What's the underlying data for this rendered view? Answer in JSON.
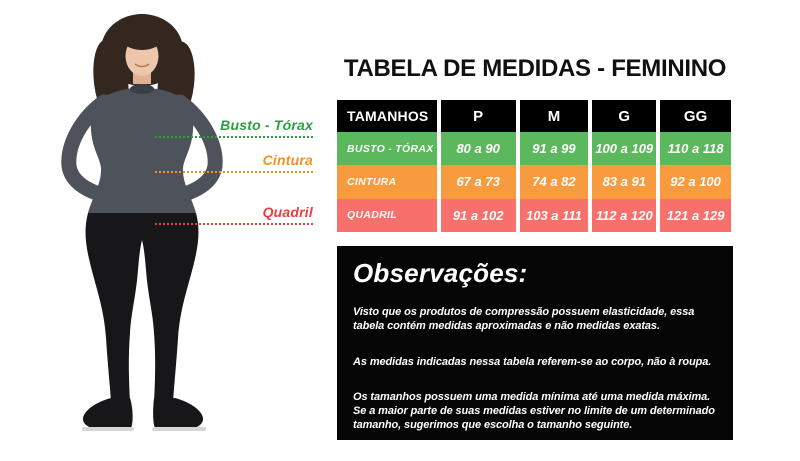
{
  "page": {
    "background": "#ffffff"
  },
  "title": "TABELA DE MEDIDAS - FEMININO",
  "figure": {
    "labels": [
      {
        "id": "busto",
        "text": "Busto - Tórax",
        "color": "#2f9e41"
      },
      {
        "id": "cintura",
        "text": "Cintura",
        "color": "#f29221"
      },
      {
        "id": "quadril",
        "text": "Quadril",
        "color": "#e8403e"
      }
    ]
  },
  "size_table": {
    "header": [
      "TAMANHOS",
      "P",
      "M",
      "G",
      "GG"
    ],
    "header_bg": "#000000",
    "rows": [
      {
        "label": "BUSTO - TÓRAX",
        "color": "#5cb85c",
        "values": [
          "80 a 90",
          "91 a 99",
          "100 a 109",
          "110 a 118"
        ]
      },
      {
        "label": "CINTURA",
        "color": "#f89a3e",
        "values": [
          "67 a 73",
          "74 a 82",
          "83 a 91",
          "92 a 100"
        ]
      },
      {
        "label": "QUADRIL",
        "color": "#f8706c",
        "values": [
          "91 a 102",
          "103 a 111",
          "112 a 120",
          "121 a 129"
        ]
      }
    ]
  },
  "observations": {
    "title": "Observações:",
    "paragraphs": [
      "Visto que os produtos de compressão possuem elasticidade, essa tabela contém medidas aproximadas e não medidas exatas.",
      "As medidas indicadas nessa tabela referem-se ao corpo, não à roupa.",
      "Os tamanhos possuem uma medida mínima até uma medida máxima. Se a maior parte de suas medidas estiver no limite de um determinado tamanho, sugerimos que escolha o tamanho seguinte."
    ]
  }
}
